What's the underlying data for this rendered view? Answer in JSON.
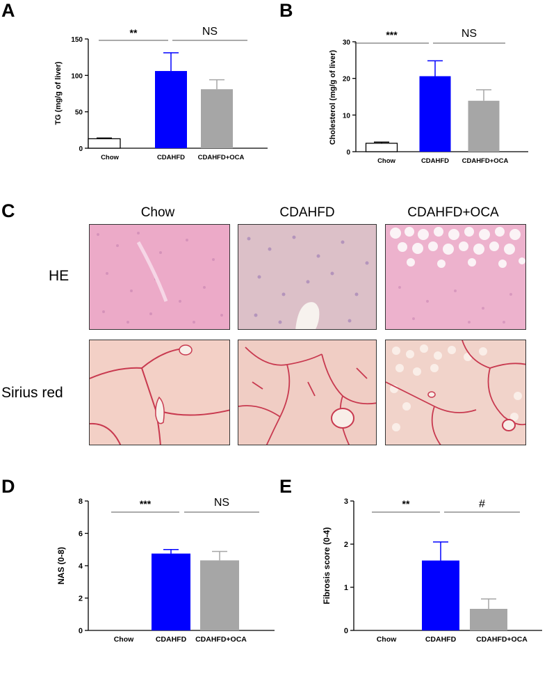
{
  "panels": {
    "A": "A",
    "B": "B",
    "C": "C",
    "D": "D",
    "E": "E"
  },
  "histology": {
    "columns": [
      "Chow",
      "CDAHFD",
      "CDAHFD+OCA"
    ],
    "rows": [
      "HE",
      "Sirius red"
    ]
  },
  "colors": {
    "chow": "#ffffff",
    "cdahfd": "#0000ff",
    "cdahfd_oca": "#a6a6a6"
  },
  "chart_data": [
    {
      "type": "bar",
      "panel": "A",
      "categories": [
        "Chow",
        "CDAHFD",
        "CDAHFD+OCA"
      ],
      "values": [
        13,
        106,
        81
      ],
      "errors": [
        1,
        25,
        13
      ],
      "ylabel": "TG (mg/g of liver)",
      "ylim": [
        0,
        150
      ],
      "yticks": [
        0,
        50,
        100,
        150
      ],
      "significance": [
        {
          "from": 0,
          "to": 1,
          "label": "**"
        },
        {
          "from": 1,
          "to": 2,
          "label": "NS"
        }
      ]
    },
    {
      "type": "bar",
      "panel": "B",
      "categories": [
        "Chow",
        "CDAHFD",
        "CDAHFD+OCA"
      ],
      "values": [
        2.3,
        20.6,
        13.9
      ],
      "errors": [
        0.3,
        4.2,
        3.0
      ],
      "ylabel": "Cholesterol (mg/g of liver)",
      "ylim": [
        0,
        30
      ],
      "yticks": [
        0,
        10,
        20,
        30
      ],
      "significance": [
        {
          "from": 0,
          "to": 1,
          "label": "***"
        },
        {
          "from": 1,
          "to": 2,
          "label": "NS"
        }
      ]
    },
    {
      "type": "bar",
      "panel": "D",
      "categories": [
        "Chow",
        "CDAHFD",
        "CDAHFD+OCA"
      ],
      "values": [
        0,
        4.75,
        4.33
      ],
      "errors": [
        0,
        0.25,
        0.55
      ],
      "ylabel": "NAS (0-8)",
      "ylim": [
        0,
        8
      ],
      "yticks": [
        0,
        2,
        4,
        6,
        8
      ],
      "significance": [
        {
          "from": 0,
          "to": 1,
          "label": "***"
        },
        {
          "from": 1,
          "to": 2,
          "label": "NS"
        }
      ]
    },
    {
      "type": "bar",
      "panel": "E",
      "categories": [
        "Chow",
        "CDAHFD",
        "CDAHFD+OCA"
      ],
      "values": [
        0,
        1.62,
        0.5
      ],
      "errors": [
        0,
        0.43,
        0.23
      ],
      "ylabel": "Fibrosis score (0-4)",
      "ylim": [
        0,
        3
      ],
      "yticks": [
        0,
        1,
        2,
        3
      ],
      "significance": [
        {
          "from": 0,
          "to": 1,
          "label": "**"
        },
        {
          "from": 1,
          "to": 2,
          "label": "#"
        }
      ]
    }
  ]
}
